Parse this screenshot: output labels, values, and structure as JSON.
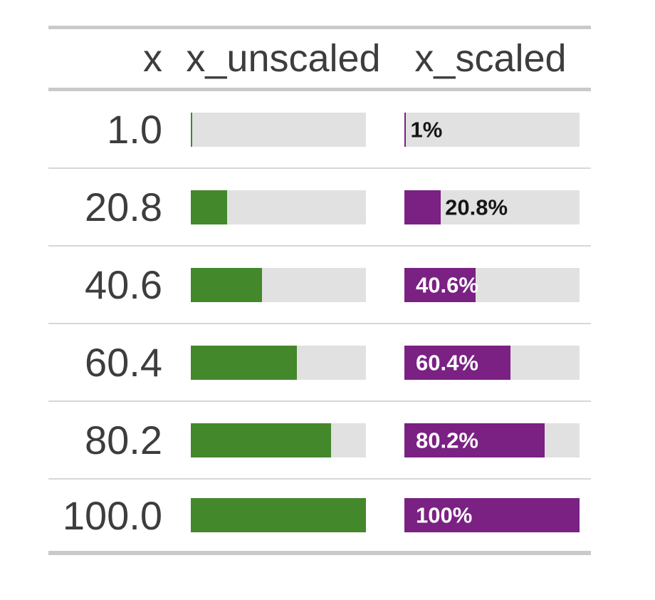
{
  "table": {
    "columns": [
      {
        "label": "x"
      },
      {
        "label": "x_unscaled"
      },
      {
        "label": "x_scaled"
      }
    ],
    "rows": [
      {
        "x": "1.0",
        "pct": 1,
        "scaled_label": "1%",
        "label_position": "outside"
      },
      {
        "x": "20.8",
        "pct": 20.8,
        "scaled_label": "20.8%",
        "label_position": "outside"
      },
      {
        "x": "40.6",
        "pct": 40.6,
        "scaled_label": "40.6%",
        "label_position": "inside"
      },
      {
        "x": "60.4",
        "pct": 60.4,
        "scaled_label": "60.4%",
        "label_position": "inside"
      },
      {
        "x": "80.2",
        "pct": 80.2,
        "scaled_label": "80.2%",
        "label_position": "inside"
      },
      {
        "x": "100.0",
        "pct": 100,
        "scaled_label": "100%",
        "label_position": "inside"
      }
    ]
  },
  "colors": {
    "unscaled_fill": "#44882c",
    "scaled_fill": "#7a2183",
    "track": "#e1e1e1",
    "border_strong": "#cacaca",
    "row_separator": "#d7d7d7",
    "text": "#3d3d3d",
    "label_inside": "#ffffff",
    "label_outside": "#161616"
  },
  "chart_data": {
    "type": "bar",
    "title": "",
    "columns": [
      "x",
      "x_unscaled",
      "x_scaled"
    ],
    "categories": [
      "1.0",
      "20.8",
      "40.6",
      "60.4",
      "80.2",
      "100.0"
    ],
    "series": [
      {
        "name": "x_unscaled",
        "values": [
          1,
          20.8,
          40.6,
          60.4,
          80.2,
          100
        ],
        "color": "#44882c",
        "labels": false
      },
      {
        "name": "x_scaled",
        "values": [
          1,
          20.8,
          40.6,
          60.4,
          80.2,
          100
        ],
        "color": "#7a2183",
        "labels": [
          "1%",
          "20.8%",
          "40.6%",
          "60.4%",
          "80.2%",
          "100%"
        ]
      }
    ],
    "xlabel": "",
    "ylabel": "",
    "bar_range": [
      0,
      100
    ],
    "layout": "horizontal inline table bars on gray tracks"
  }
}
